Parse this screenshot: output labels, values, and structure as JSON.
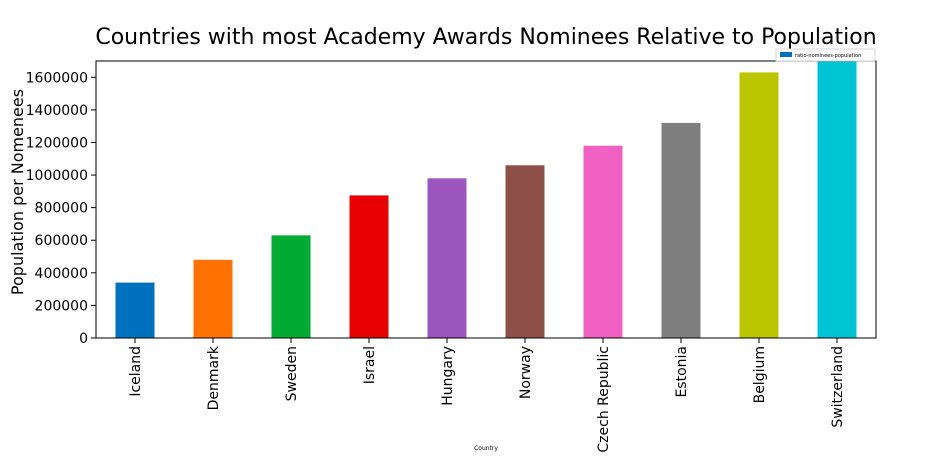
{
  "chart_data": {
    "type": "bar",
    "title": "Countries with most Academy Awards Nominees Relative to Population",
    "xlabel": "Country",
    "ylabel": "Population per Nomenees",
    "categories": [
      "Iceland",
      "Denmark",
      "Sweden",
      "Israel",
      "Hungary",
      "Norway",
      "Czech Republic",
      "Estonia",
      "Belgium",
      "Switzerland"
    ],
    "series": [
      {
        "name": "ratio-nominees-population",
        "values": [
          340000,
          480000,
          630000,
          875000,
          980000,
          1060000,
          1180000,
          1320000,
          1630000,
          1700000
        ]
      }
    ],
    "bar_colors": [
      "#0072bd",
      "#ff7100",
      "#00aa33",
      "#e60000",
      "#9c56c0",
      "#8c5048",
      "#f060c0",
      "#7f7f7f",
      "#bcc600",
      "#00c3d3"
    ],
    "ylim": [
      0,
      1700000
    ],
    "yticks": [
      0,
      200000,
      400000,
      600000,
      800000,
      1000000,
      1200000,
      1400000,
      1600000
    ],
    "legend": {
      "position": "top-right",
      "label": "ratio-nominees-population",
      "color": "#0072bd"
    },
    "grid": false
  }
}
